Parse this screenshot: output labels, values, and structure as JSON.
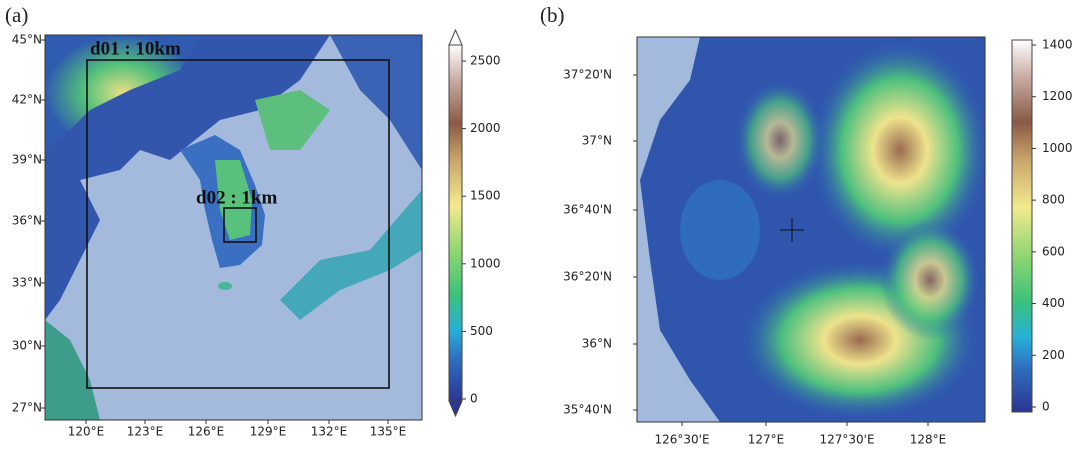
{
  "panels": [
    {
      "label": "(a)",
      "yticks": [
        "45°N",
        "42°N",
        "39°N",
        "36°N",
        "33°N",
        "30°N",
        "27°N"
      ],
      "xticks": [
        "120°E",
        "123°E",
        "126°E",
        "129°E",
        "132°E",
        "135°E"
      ],
      "colorbar": {
        "ticks": [
          0,
          500,
          1000,
          1500,
          2000,
          2500
        ]
      },
      "annotations": [
        "d01 : 10km",
        "d02 : 1km"
      ]
    },
    {
      "label": "(b)",
      "yticks": [
        "37°20'N",
        "37°N",
        "36°40'N",
        "36°20'N",
        "36°N",
        "35°40'N"
      ],
      "xticks": [
        "126°30'E",
        "127°E",
        "127°30'E",
        "128°E"
      ],
      "colorbar": {
        "ticks": [
          0,
          200,
          400,
          600,
          800,
          1000,
          1200,
          1400
        ]
      }
    }
  ]
}
